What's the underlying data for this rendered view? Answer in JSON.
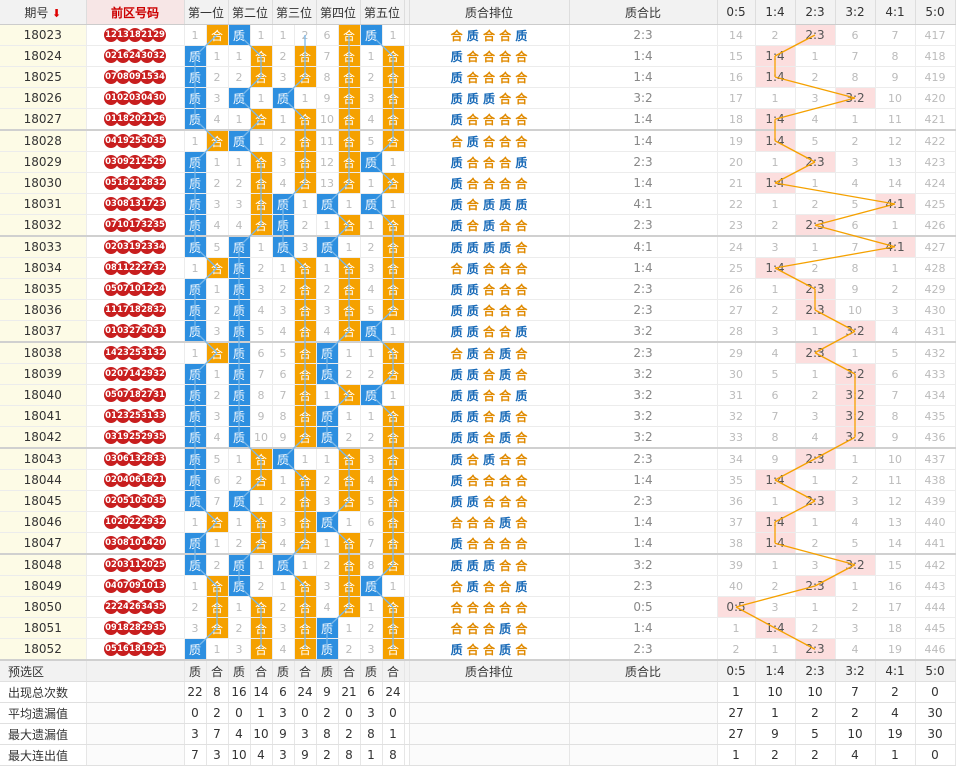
{
  "header": {
    "period": "期号",
    "sort_icon": "down-arrow-icon",
    "front_numbers": "前区号码",
    "positions": [
      "第一位",
      "第二位",
      "第三位",
      "第四位",
      "第五位"
    ],
    "sequence": "质合排位",
    "ratio": "质合比",
    "ratio_cols": [
      "0:5",
      "1:4",
      "2:3",
      "3:2",
      "4:1",
      "5:0"
    ]
  },
  "colors": {
    "prime": "#2d8fe0",
    "composite": "#f5a100",
    "ball": "#c81e1e",
    "hit": "#fcdede"
  },
  "rows": [
    {
      "period": "18023",
      "balls": [
        "12",
        "13",
        "18",
        "21",
        "29"
      ],
      "pos": [
        "1",
        "合",
        "质",
        "1",
        "1",
        "2",
        "6",
        "合",
        "质",
        "1"
      ],
      "seq": "合质合合质",
      "ratio": "2:3",
      "counts": [
        "14",
        "2",
        "2:3",
        "6",
        "7",
        "417"
      ],
      "hit": 2
    },
    {
      "period": "18024",
      "balls": [
        "02",
        "16",
        "24",
        "30",
        "32"
      ],
      "pos": [
        "质",
        "1",
        "1",
        "合",
        "2",
        "合",
        "7",
        "合",
        "1",
        "合"
      ],
      "seq": "质合合合合",
      "ratio": "1:4",
      "counts": [
        "15",
        "1:4",
        "1",
        "7",
        "8",
        "418"
      ],
      "hit": 1
    },
    {
      "period": "18025",
      "balls": [
        "07",
        "08",
        "09",
        "15",
        "34"
      ],
      "pos": [
        "质",
        "2",
        "2",
        "合",
        "3",
        "合",
        "8",
        "合",
        "2",
        "合"
      ],
      "seq": "质合合合合",
      "ratio": "1:4",
      "counts": [
        "16",
        "1:4",
        "2",
        "8",
        "9",
        "419"
      ],
      "hit": 1
    },
    {
      "period": "18026",
      "balls": [
        "01",
        "02",
        "03",
        "04",
        "30"
      ],
      "pos": [
        "质",
        "3",
        "质",
        "1",
        "质",
        "1",
        "9",
        "合",
        "3",
        "合"
      ],
      "seq": "质质质合合",
      "ratio": "3:2",
      "counts": [
        "17",
        "1",
        "3",
        "3:2",
        "10",
        "420"
      ],
      "hit": 3
    },
    {
      "period": "18027",
      "balls": [
        "01",
        "18",
        "20",
        "21",
        "26"
      ],
      "pos": [
        "质",
        "4",
        "1",
        "合",
        "1",
        "合",
        "10",
        "合",
        "4",
        "合"
      ],
      "seq": "质合合合合",
      "ratio": "1:4",
      "counts": [
        "18",
        "1:4",
        "4",
        "1",
        "11",
        "421"
      ],
      "hit": 1
    },
    {
      "period": "18028",
      "balls": [
        "04",
        "19",
        "25",
        "30",
        "35"
      ],
      "pos": [
        "1",
        "合",
        "质",
        "1",
        "2",
        "合",
        "11",
        "合",
        "5",
        "合"
      ],
      "seq": "合质合合合",
      "ratio": "1:4",
      "counts": [
        "19",
        "1:4",
        "5",
        "2",
        "12",
        "422"
      ],
      "hit": 1
    },
    {
      "period": "18029",
      "balls": [
        "03",
        "09",
        "21",
        "25",
        "29"
      ],
      "pos": [
        "质",
        "1",
        "1",
        "合",
        "3",
        "合",
        "12",
        "合",
        "质",
        "1"
      ],
      "seq": "质合合合质",
      "ratio": "2:3",
      "counts": [
        "20",
        "1",
        "2:3",
        "3",
        "13",
        "423"
      ],
      "hit": 2
    },
    {
      "period": "18030",
      "balls": [
        "05",
        "18",
        "21",
        "28",
        "32"
      ],
      "pos": [
        "质",
        "2",
        "2",
        "合",
        "4",
        "合",
        "13",
        "合",
        "1",
        "合"
      ],
      "seq": "质合合合合",
      "ratio": "1:4",
      "counts": [
        "21",
        "1:4",
        "1",
        "4",
        "14",
        "424"
      ],
      "hit": 1
    },
    {
      "period": "18031",
      "balls": [
        "03",
        "08",
        "13",
        "17",
        "23"
      ],
      "pos": [
        "质",
        "3",
        "3",
        "合",
        "质",
        "1",
        "质",
        "1",
        "质",
        "1"
      ],
      "seq": "质合质质质",
      "ratio": "4:1",
      "counts": [
        "22",
        "1",
        "2",
        "5",
        "4:1",
        "425"
      ],
      "hit": 4
    },
    {
      "period": "18032",
      "balls": [
        "07",
        "10",
        "17",
        "32",
        "35"
      ],
      "pos": [
        "质",
        "4",
        "4",
        "合",
        "质",
        "2",
        "1",
        "合",
        "1",
        "合"
      ],
      "seq": "质合质合合",
      "ratio": "2:3",
      "counts": [
        "23",
        "2",
        "2:3",
        "6",
        "1",
        "426"
      ],
      "hit": 2
    },
    {
      "period": "18033",
      "balls": [
        "02",
        "03",
        "19",
        "23",
        "34"
      ],
      "pos": [
        "质",
        "5",
        "质",
        "1",
        "质",
        "3",
        "质",
        "1",
        "2",
        "合"
      ],
      "seq": "质质质质合",
      "ratio": "4:1",
      "counts": [
        "24",
        "3",
        "1",
        "7",
        "4:1",
        "427"
      ],
      "hit": 4
    },
    {
      "period": "18034",
      "balls": [
        "08",
        "11",
        "22",
        "27",
        "32"
      ],
      "pos": [
        "1",
        "合",
        "质",
        "2",
        "1",
        "合",
        "1",
        "合",
        "3",
        "合"
      ],
      "seq": "合质合合合",
      "ratio": "1:4",
      "counts": [
        "25",
        "1:4",
        "2",
        "8",
        "1",
        "428"
      ],
      "hit": 1
    },
    {
      "period": "18035",
      "balls": [
        "05",
        "07",
        "10",
        "12",
        "24"
      ],
      "pos": [
        "质",
        "1",
        "质",
        "3",
        "2",
        "合",
        "2",
        "合",
        "4",
        "合"
      ],
      "seq": "质质合合合",
      "ratio": "2:3",
      "counts": [
        "26",
        "1",
        "2:3",
        "9",
        "2",
        "429"
      ],
      "hit": 2
    },
    {
      "period": "18036",
      "balls": [
        "11",
        "17",
        "18",
        "28",
        "32"
      ],
      "pos": [
        "质",
        "2",
        "质",
        "4",
        "3",
        "合",
        "3",
        "合",
        "5",
        "合"
      ],
      "seq": "质质合合合",
      "ratio": "2:3",
      "counts": [
        "27",
        "2",
        "2:3",
        "10",
        "3",
        "430"
      ],
      "hit": 2
    },
    {
      "period": "18037",
      "balls": [
        "01",
        "03",
        "27",
        "30",
        "31"
      ],
      "pos": [
        "质",
        "3",
        "质",
        "5",
        "4",
        "合",
        "4",
        "合",
        "质",
        "1"
      ],
      "seq": "质质合合质",
      "ratio": "3:2",
      "counts": [
        "28",
        "3",
        "1",
        "3:2",
        "4",
        "431"
      ],
      "hit": 3
    },
    {
      "period": "18038",
      "balls": [
        "14",
        "23",
        "25",
        "31",
        "32"
      ],
      "pos": [
        "1",
        "合",
        "质",
        "6",
        "5",
        "合",
        "质",
        "1",
        "1",
        "合"
      ],
      "seq": "合质合质合",
      "ratio": "2:3",
      "counts": [
        "29",
        "4",
        "2:3",
        "1",
        "5",
        "432"
      ],
      "hit": 2
    },
    {
      "period": "18039",
      "balls": [
        "02",
        "07",
        "14",
        "29",
        "32"
      ],
      "pos": [
        "质",
        "1",
        "质",
        "7",
        "6",
        "合",
        "质",
        "2",
        "2",
        "合"
      ],
      "seq": "质质合质合",
      "ratio": "3:2",
      "counts": [
        "30",
        "5",
        "1",
        "3:2",
        "6",
        "433"
      ],
      "hit": 3
    },
    {
      "period": "18040",
      "balls": [
        "05",
        "07",
        "18",
        "27",
        "31"
      ],
      "pos": [
        "质",
        "2",
        "质",
        "8",
        "7",
        "合",
        "1",
        "合",
        "质",
        "1"
      ],
      "seq": "质质合合质",
      "ratio": "3:2",
      "counts": [
        "31",
        "6",
        "2",
        "3:2",
        "7",
        "434"
      ],
      "hit": 3
    },
    {
      "period": "18041",
      "balls": [
        "01",
        "23",
        "25",
        "31",
        "33"
      ],
      "pos": [
        "质",
        "3",
        "质",
        "9",
        "8",
        "合",
        "质",
        "1",
        "1",
        "合"
      ],
      "seq": "质质合质合",
      "ratio": "3:2",
      "counts": [
        "32",
        "7",
        "3",
        "3:2",
        "8",
        "435"
      ],
      "hit": 3
    },
    {
      "period": "18042",
      "balls": [
        "03",
        "19",
        "25",
        "29",
        "35"
      ],
      "pos": [
        "质",
        "4",
        "质",
        "10",
        "9",
        "合",
        "质",
        "2",
        "2",
        "合"
      ],
      "seq": "质质合质合",
      "ratio": "3:2",
      "counts": [
        "33",
        "8",
        "4",
        "3:2",
        "9",
        "436"
      ],
      "hit": 3
    },
    {
      "period": "18043",
      "balls": [
        "03",
        "06",
        "13",
        "28",
        "33"
      ],
      "pos": [
        "质",
        "5",
        "1",
        "合",
        "质",
        "1",
        "1",
        "合",
        "3",
        "合"
      ],
      "seq": "质合质合合",
      "ratio": "2:3",
      "counts": [
        "34",
        "9",
        "2:3",
        "1",
        "10",
        "437"
      ],
      "hit": 2
    },
    {
      "period": "18044",
      "balls": [
        "02",
        "04",
        "06",
        "18",
        "21"
      ],
      "pos": [
        "质",
        "6",
        "2",
        "合",
        "1",
        "合",
        "2",
        "合",
        "4",
        "合"
      ],
      "seq": "质合合合合",
      "ratio": "1:4",
      "counts": [
        "35",
        "1:4",
        "1",
        "2",
        "11",
        "438"
      ],
      "hit": 1
    },
    {
      "period": "18045",
      "balls": [
        "02",
        "05",
        "10",
        "30",
        "35"
      ],
      "pos": [
        "质",
        "7",
        "质",
        "1",
        "2",
        "合",
        "3",
        "合",
        "5",
        "合"
      ],
      "seq": "质质合合合",
      "ratio": "2:3",
      "counts": [
        "36",
        "1",
        "2:3",
        "3",
        "12",
        "439"
      ],
      "hit": 2
    },
    {
      "period": "18046",
      "balls": [
        "10",
        "20",
        "22",
        "29",
        "32"
      ],
      "pos": [
        "1",
        "合",
        "1",
        "合",
        "3",
        "合",
        "质",
        "1",
        "6",
        "合"
      ],
      "seq": "合合合质合",
      "ratio": "1:4",
      "counts": [
        "37",
        "1:4",
        "1",
        "4",
        "13",
        "440"
      ],
      "hit": 1
    },
    {
      "period": "18047",
      "balls": [
        "03",
        "08",
        "10",
        "14",
        "20"
      ],
      "pos": [
        "质",
        "1",
        "2",
        "合",
        "4",
        "合",
        "1",
        "合",
        "7",
        "合"
      ],
      "seq": "质合合合合",
      "ratio": "1:4",
      "counts": [
        "38",
        "1:4",
        "2",
        "5",
        "14",
        "441"
      ],
      "hit": 1
    },
    {
      "period": "18048",
      "balls": [
        "02",
        "03",
        "11",
        "20",
        "25"
      ],
      "pos": [
        "质",
        "2",
        "质",
        "1",
        "质",
        "1",
        "2",
        "合",
        "8",
        "合"
      ],
      "seq": "质质质合合",
      "ratio": "3:2",
      "counts": [
        "39",
        "1",
        "3",
        "3:2",
        "15",
        "442"
      ],
      "hit": 3
    },
    {
      "period": "18049",
      "balls": [
        "04",
        "07",
        "09",
        "10",
        "13"
      ],
      "pos": [
        "1",
        "合",
        "质",
        "2",
        "1",
        "合",
        "3",
        "合",
        "质",
        "1"
      ],
      "seq": "合质合合质",
      "ratio": "2:3",
      "counts": [
        "40",
        "2",
        "2:3",
        "1",
        "16",
        "443"
      ],
      "hit": 2
    },
    {
      "period": "18050",
      "balls": [
        "22",
        "24",
        "26",
        "34",
        "35"
      ],
      "pos": [
        "2",
        "合",
        "1",
        "合",
        "2",
        "合",
        "4",
        "合",
        "1",
        "合"
      ],
      "seq": "合合合合合",
      "ratio": "0:5",
      "counts": [
        "0:5",
        "3",
        "1",
        "2",
        "17",
        "444"
      ],
      "hit": 0
    },
    {
      "period": "18051",
      "balls": [
        "09",
        "18",
        "28",
        "29",
        "35"
      ],
      "pos": [
        "3",
        "合",
        "2",
        "合",
        "3",
        "合",
        "质",
        "1",
        "2",
        "合"
      ],
      "seq": "合合合质合",
      "ratio": "1:4",
      "counts": [
        "1",
        "1:4",
        "2",
        "3",
        "18",
        "445"
      ],
      "hit": 1
    },
    {
      "period": "18052",
      "balls": [
        "05",
        "16",
        "18",
        "19",
        "25"
      ],
      "pos": [
        "质",
        "1",
        "3",
        "合",
        "4",
        "合",
        "质",
        "2",
        "3",
        "合"
      ],
      "seq": "质合合质合",
      "ratio": "2:3",
      "counts": [
        "2",
        "1",
        "2:3",
        "4",
        "19",
        "446"
      ],
      "hit": 2
    }
  ],
  "footer": {
    "preselect_label": "预选区",
    "sub_headers": [
      "质",
      "合",
      "质",
      "合",
      "质",
      "合",
      "质",
      "合",
      "质",
      "合"
    ],
    "sequence": "质合排位",
    "ratio": "质合比",
    "ratio_cols": [
      "0:5",
      "1:4",
      "2:3",
      "3:2",
      "4:1",
      "5:0"
    ],
    "stats": [
      {
        "label": "出现总次数",
        "pos": [
          "22",
          "8",
          "16",
          "14",
          "6",
          "24",
          "9",
          "21",
          "6",
          "24"
        ],
        "ratio": [
          "1",
          "10",
          "10",
          "7",
          "2",
          "0"
        ]
      },
      {
        "label": "平均遗漏值",
        "pos": [
          "0",
          "2",
          "0",
          "1",
          "3",
          "0",
          "2",
          "0",
          "3",
          "0"
        ],
        "ratio": [
          "27",
          "1",
          "2",
          "2",
          "4",
          "30"
        ]
      },
      {
        "label": "最大遗漏值",
        "pos": [
          "3",
          "7",
          "4",
          "10",
          "9",
          "3",
          "8",
          "2",
          "8",
          "1"
        ],
        "ratio": [
          "27",
          "9",
          "5",
          "10",
          "19",
          "30"
        ]
      },
      {
        "label": "最大连出值",
        "pos": [
          "7",
          "3",
          "10",
          "4",
          "3",
          "9",
          "2",
          "8",
          "1",
          "8"
        ],
        "ratio": [
          "1",
          "2",
          "2",
          "4",
          "1",
          "0"
        ]
      }
    ]
  }
}
